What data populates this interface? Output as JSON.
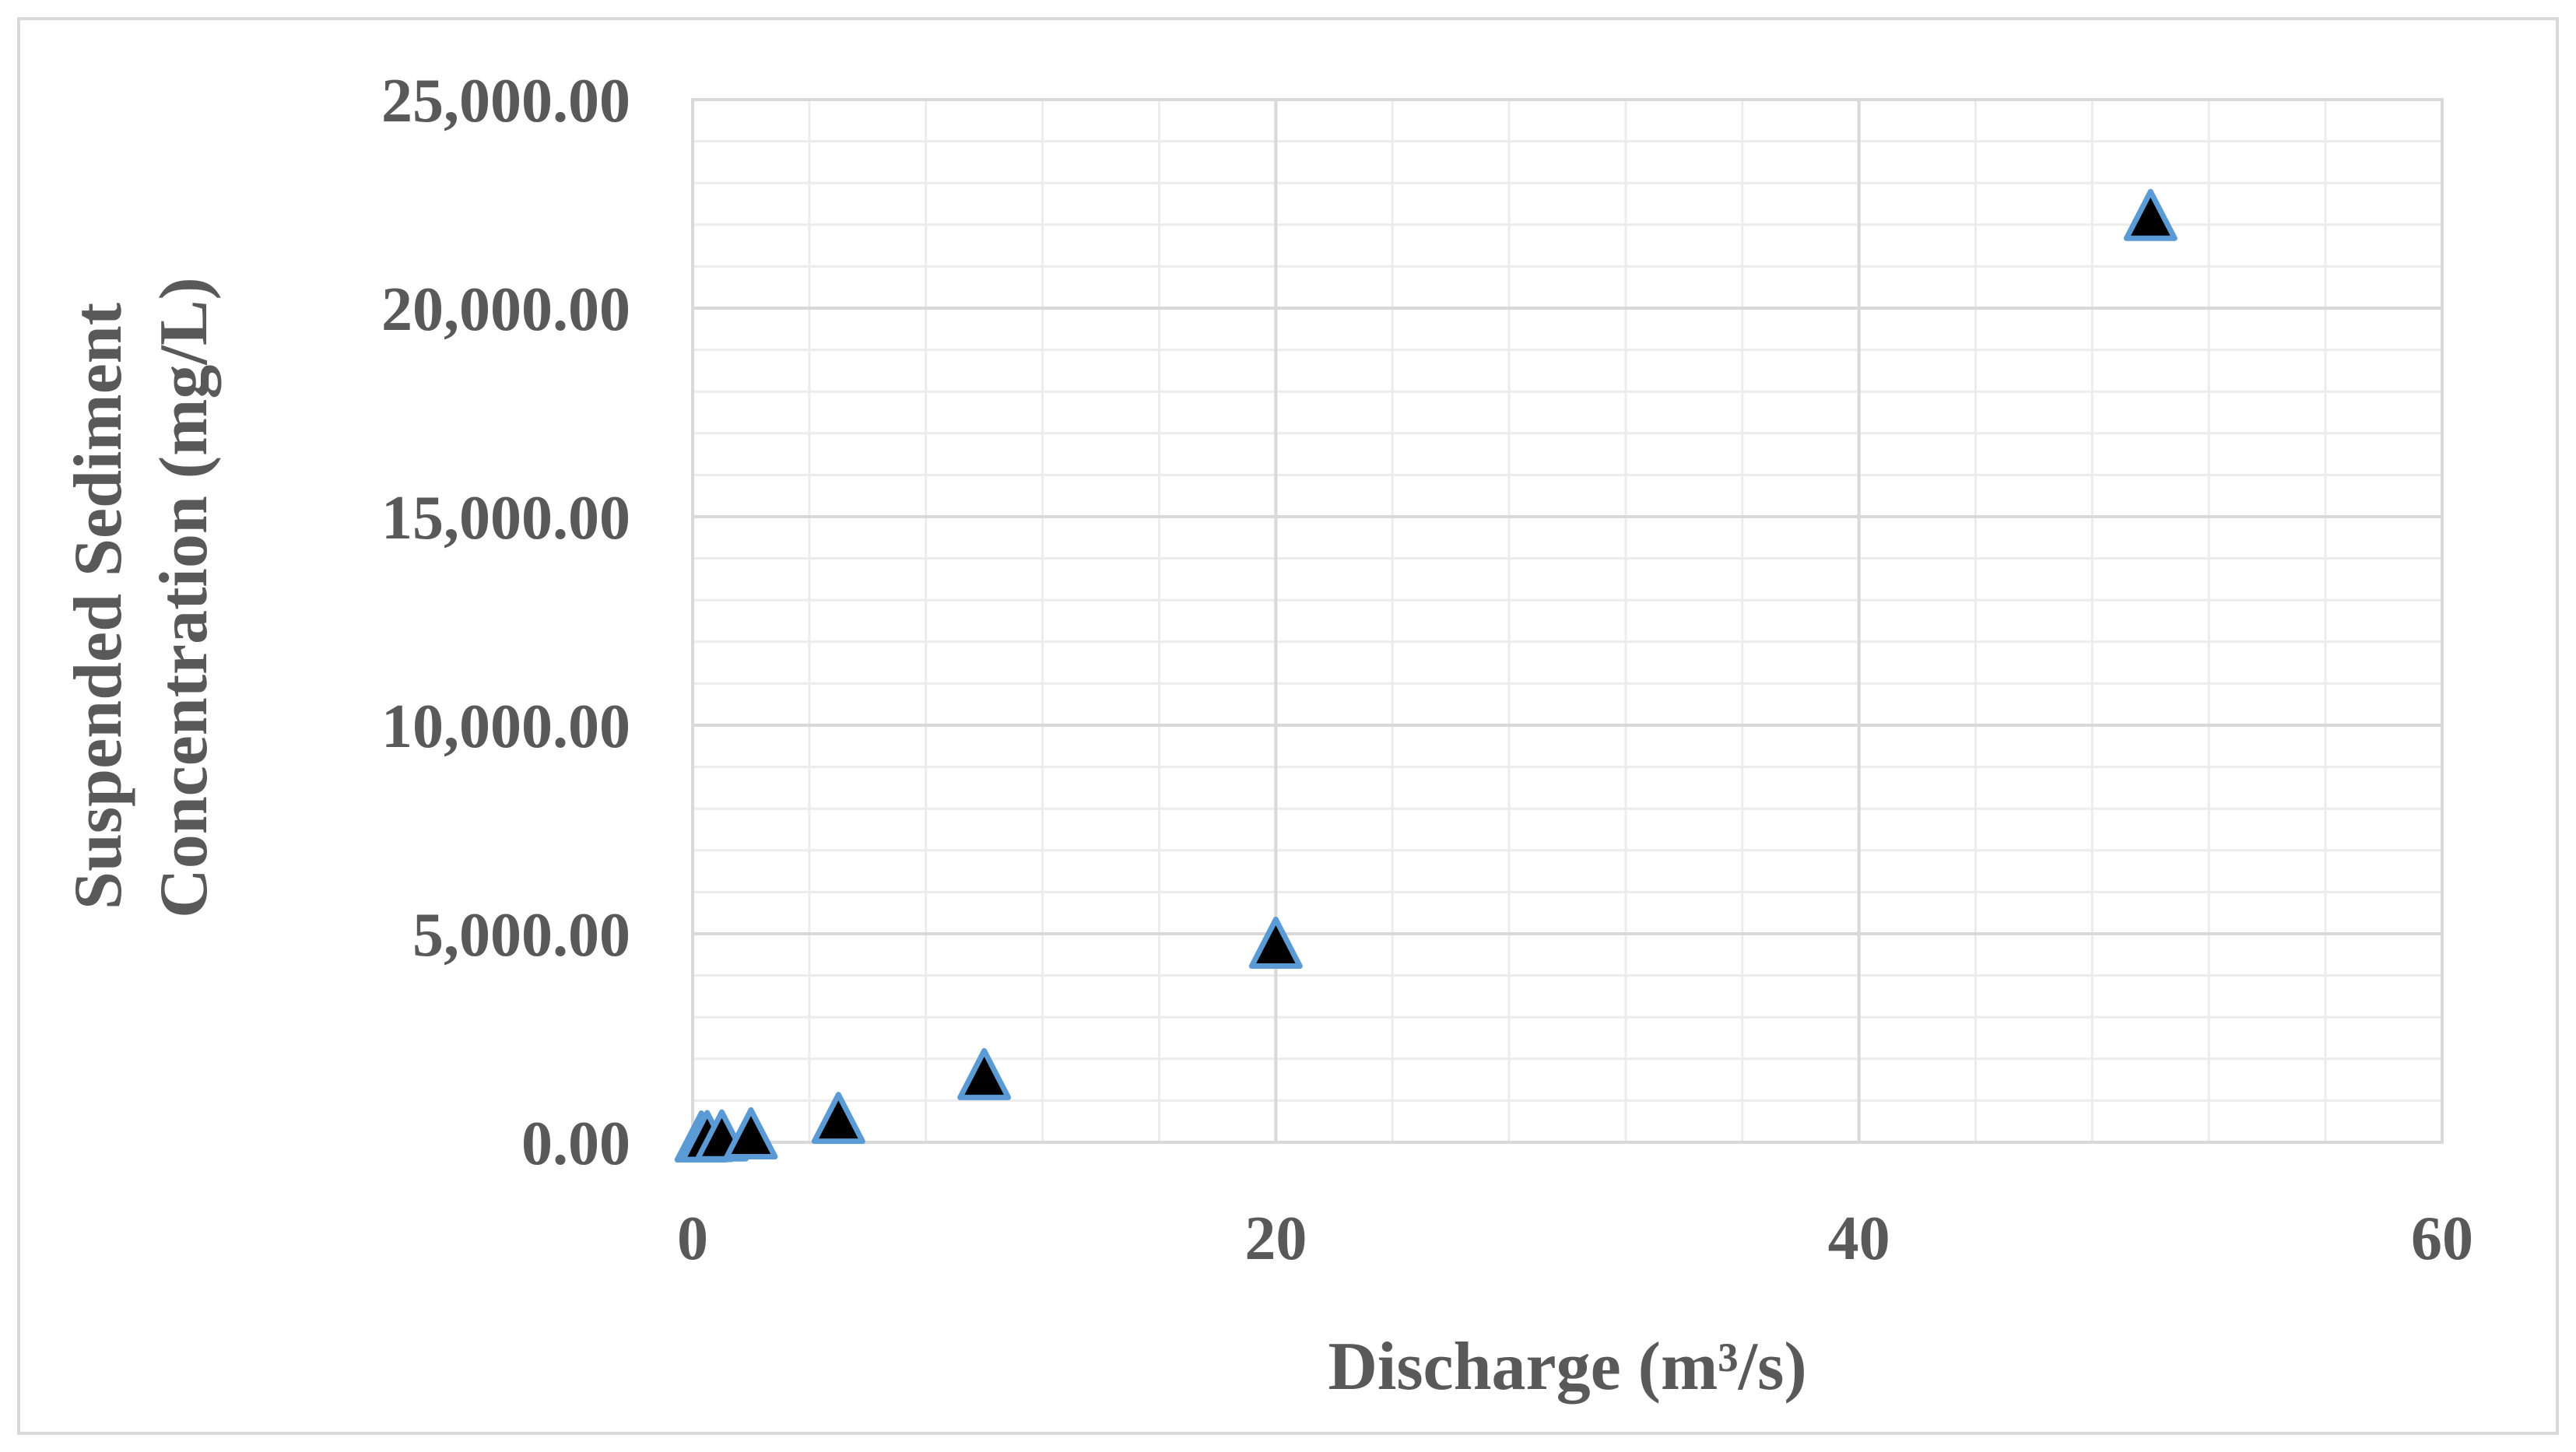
{
  "chart_data": {
    "type": "scatter",
    "xlabel": "Discharge (m³/s)",
    "ylabel_lines": [
      "Suspended Sediment",
      "Concentration (mg/L)"
    ],
    "xlim": [
      0,
      60
    ],
    "ylim": [
      0,
      25000
    ],
    "x_ticks": [
      0,
      20,
      40,
      60
    ],
    "x_tick_labels": [
      "0",
      "20",
      "40",
      "60"
    ],
    "y_ticks": [
      0,
      5000,
      10000,
      15000,
      20000,
      25000
    ],
    "y_tick_labels": [
      "0.00",
      "5,000.00",
      "10,000.00",
      "15,000.00",
      "20,000.00",
      "25,000.00"
    ],
    "x_minor_step": 4,
    "y_minor_step": 1000,
    "grid": true,
    "marker": "triangle",
    "marker_fill": "#000000",
    "marker_edge": "#5b9bd5",
    "series": [
      {
        "points": [
          {
            "x": 0.3,
            "y": 5
          },
          {
            "x": 0.5,
            "y": 15
          },
          {
            "x": 1,
            "y": 30
          },
          {
            "x": 2,
            "y": 80
          },
          {
            "x": 5,
            "y": 450
          },
          {
            "x": 10,
            "y": 1500
          },
          {
            "x": 20,
            "y": 4650
          },
          {
            "x": 50,
            "y": 22100
          }
        ]
      }
    ]
  }
}
